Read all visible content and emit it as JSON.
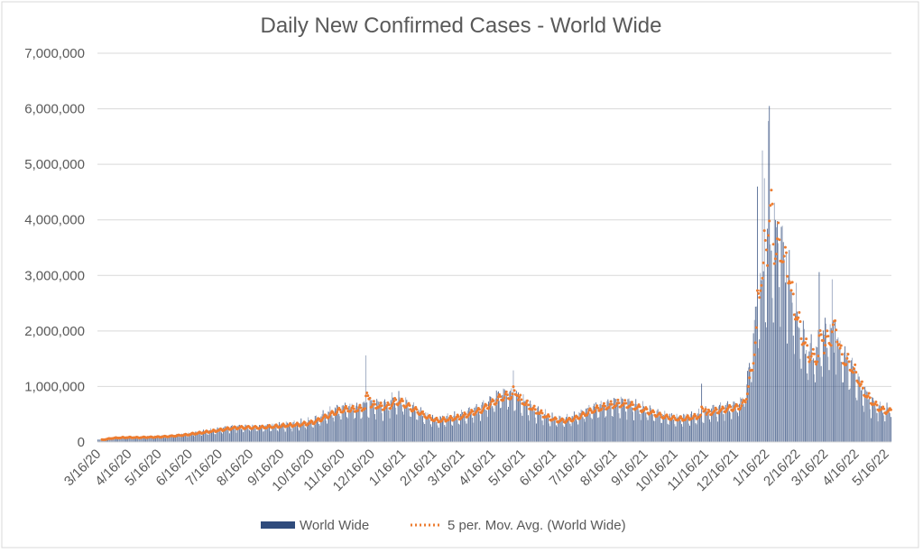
{
  "chart_data": {
    "type": "bar",
    "title": "Daily New Confirmed Cases - World Wide",
    "xlabel": "",
    "ylabel": "",
    "ylim": [
      0,
      7000000
    ],
    "y_ticks": [
      "0",
      "1,000,000",
      "2,000,000",
      "3,000,000",
      "4,000,000",
      "5,000,000",
      "6,000,000",
      "7,000,000"
    ],
    "x_ticks": [
      "3/16/20",
      "4/16/20",
      "5/16/20",
      "6/16/20",
      "7/16/20",
      "8/16/20",
      "9/16/20",
      "10/16/20",
      "11/16/20",
      "12/16/20",
      "1/16/21",
      "2/16/21",
      "3/16/21",
      "4/16/21",
      "5/16/21",
      "6/16/21",
      "7/16/21",
      "8/16/21",
      "9/16/21",
      "10/16/21",
      "11/16/21",
      "12/16/21",
      "1/16/22",
      "2/16/22",
      "3/16/22",
      "4/16/22",
      "5/16/22"
    ],
    "start_date": "2020-03-16",
    "grid": true,
    "legend_position": "bottom",
    "colors": {
      "bars": "#2f4b7c",
      "moving_avg": "#ed7d31",
      "grid": "#d9d9d9",
      "text": "#595959"
    },
    "series": [
      {
        "name": "World Wide",
        "kind": "daily bars",
        "weekly_avg_values": [
          40000,
          65000,
          75000,
          80000,
          82000,
          80000,
          85000,
          88000,
          92000,
          100000,
          108000,
          120000,
          130000,
          150000,
          165000,
          185000,
          200000,
          220000,
          240000,
          255000,
          260000,
          262000,
          260000,
          265000,
          275000,
          280000,
          295000,
          300000,
          310000,
          330000,
          350000,
          400000,
          460000,
          520000,
          570000,
          590000,
          580000,
          600000,
          640000,
          660000,
          620000,
          640000,
          740000,
          700000,
          620000,
          560000,
          480000,
          420000,
          380000,
          400000,
          420000,
          440000,
          480000,
          530000,
          560000,
          640000,
          720000,
          800000,
          830000,
          820000,
          740000,
          640000,
          560000,
          490000,
          430000,
          390000,
          380000,
          400000,
          440000,
          500000,
          560000,
          600000,
          630000,
          660000,
          680000,
          670000,
          640000,
          600000,
          560000,
          510000,
          470000,
          440000,
          420000,
          410000,
          430000,
          450000,
          480000,
          530000,
          560000,
          580000,
          610000,
          620000,
          700000,
          1300000,
          2300000,
          2900000,
          3300000,
          3600000,
          2900000,
          2500000,
          2000000,
          1600000,
          1500000,
          1600000,
          1900000,
          1800000,
          1500000,
          1400000,
          1200000,
          900000,
          750000,
          620000,
          560000,
          550000,
          560000
        ],
        "spikes": [
          {
            "date": "2020-12-10",
            "value": 1560000
          },
          {
            "date": "2021-04-28",
            "value": 950000
          },
          {
            "date": "2021-05-07",
            "value": 1290000
          },
          {
            "date": "2021-11-12",
            "value": 1050000
          },
          {
            "date": "2022-01-07",
            "value": 4600000
          },
          {
            "date": "2022-01-12",
            "value": 5250000
          },
          {
            "date": "2022-01-14",
            "value": 4750000
          },
          {
            "date": "2022-01-19",
            "value": 6050000
          },
          {
            "date": "2022-01-18",
            "value": 5780000
          },
          {
            "date": "2022-02-02",
            "value": 3600000
          },
          {
            "date": "2022-02-05",
            "value": 3390000
          },
          {
            "date": "2022-03-10",
            "value": 3060000
          },
          {
            "date": "2022-03-23",
            "value": 2930000
          },
          {
            "date": "2022-03-26",
            "value": 2170000
          }
        ]
      },
      {
        "name": "5 per. Mov. Avg. (World Wide)",
        "kind": "5-period moving average of daily values",
        "type": "line",
        "style": "dotted"
      }
    ]
  }
}
